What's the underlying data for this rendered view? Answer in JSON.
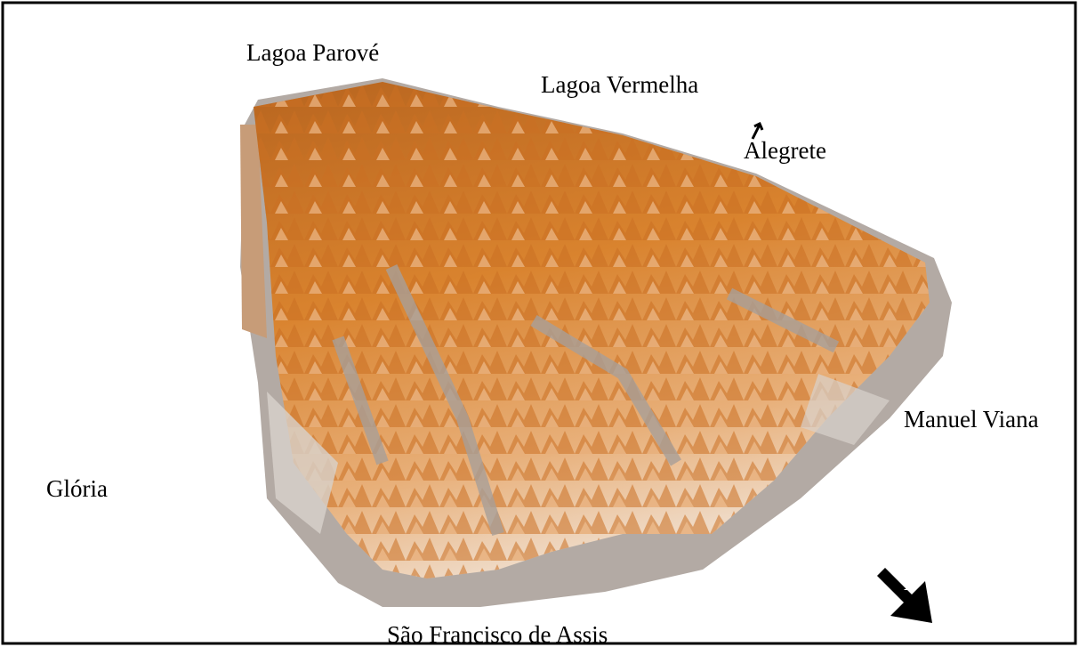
{
  "labels": {
    "lagoa_parove": "Lagoa Parové",
    "lagoa_vermelha": "Lagoa Vermelha",
    "alegrete": "Alegrete",
    "manuel_viana": "Manuel Viana",
    "gloria": "Glória",
    "sao_francisco": "São Francisco de Assis"
  },
  "north_arrow": "N"
}
